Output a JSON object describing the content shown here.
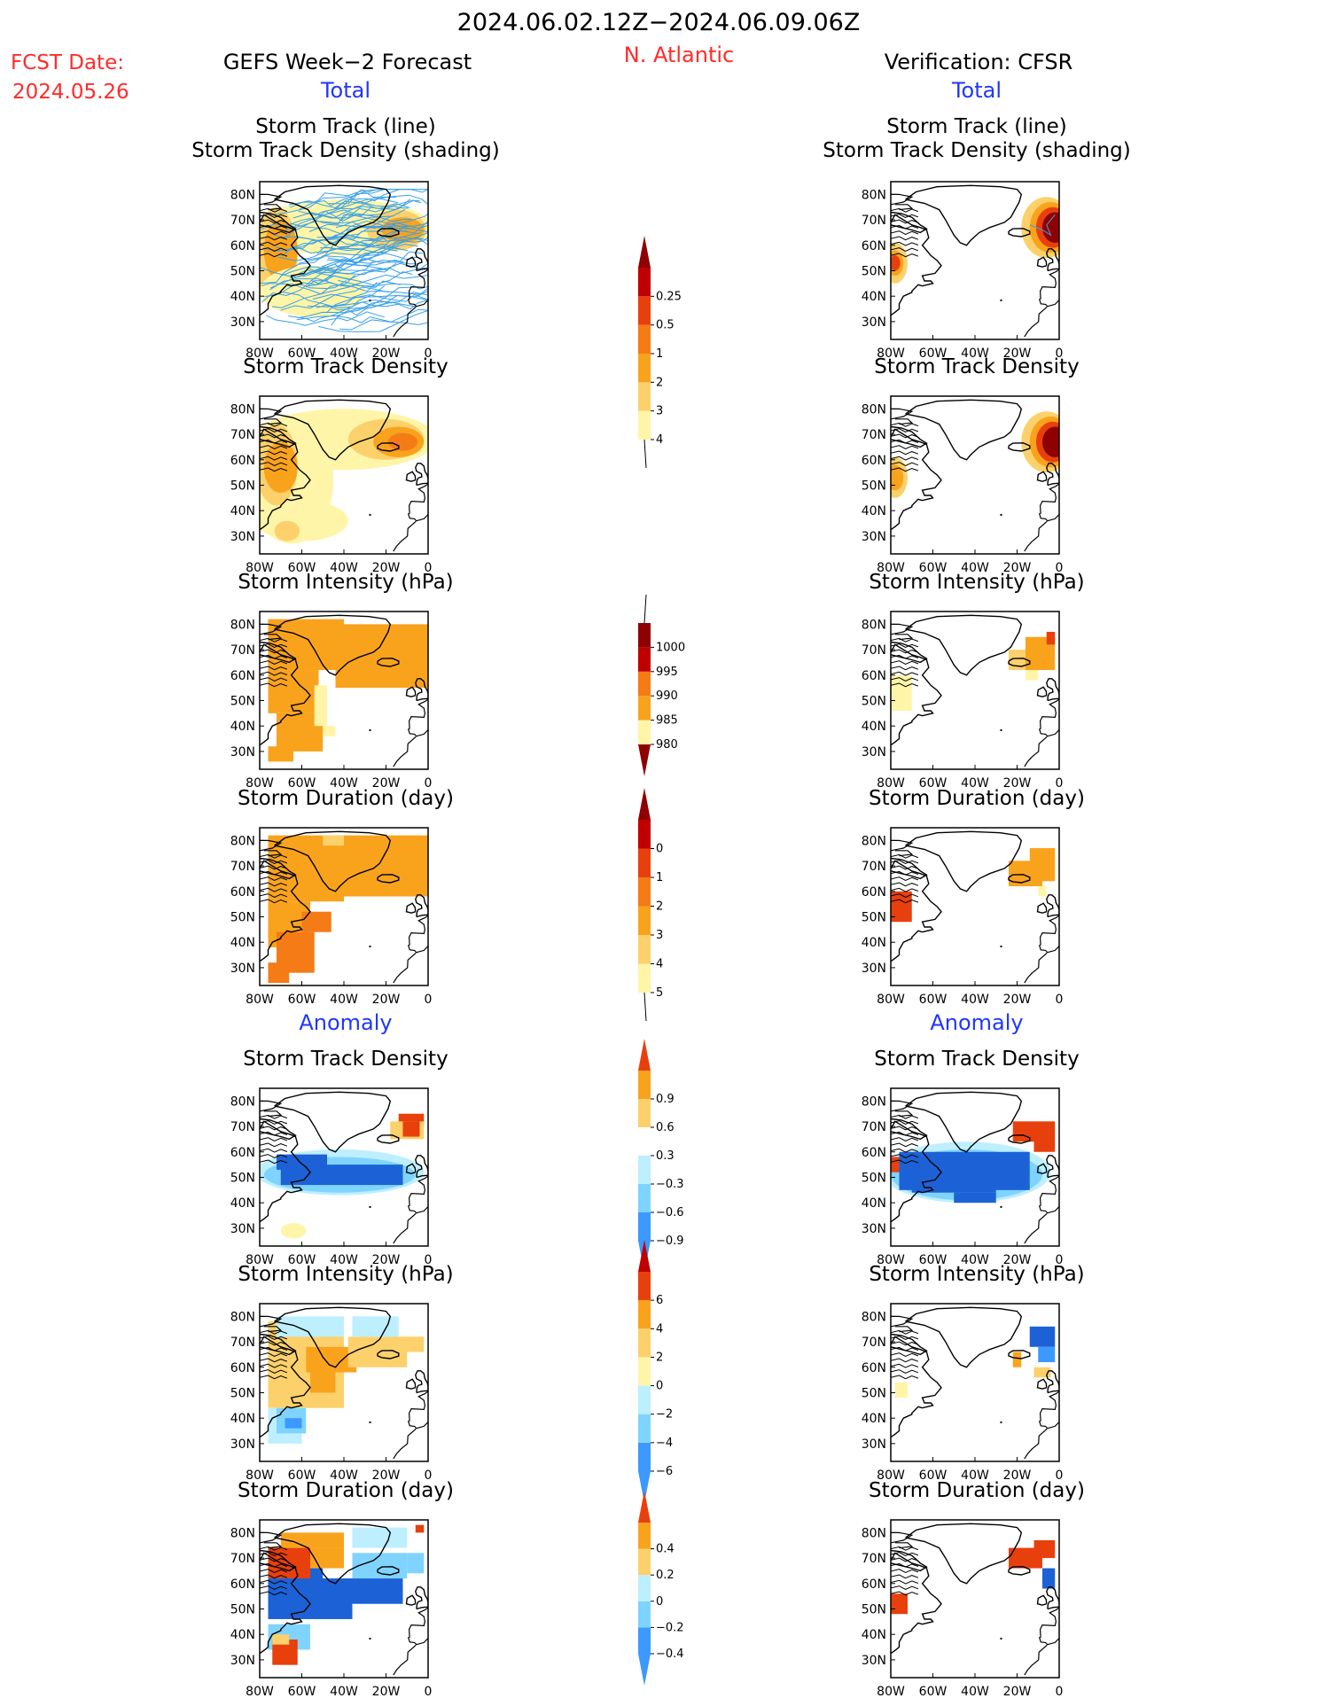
{
  "header": {
    "date_range": "2024.06.02.12Z−2024.06.09.06Z",
    "fcst_label": "FCST Date:",
    "fcst_date": "2024.05.26",
    "left_title": "GEFS Week−2 Forecast",
    "region": "N. Atlantic",
    "right_title": "Verification: CFSR",
    "total_left": "Total",
    "total_right": "Total",
    "anomaly_left": "Anomaly",
    "anomaly_right": "Anomaly"
  },
  "panel_titles": {
    "track_line": "Storm Track (line)",
    "track_shading": "Storm Track Density (shading)",
    "density": "Storm Track Density",
    "intensity": "Storm Intensity (hPa)",
    "duration": "Storm Duration (day)"
  },
  "axes": {
    "x_ticks": [
      "80W",
      "60W",
      "40W",
      "20W",
      "0"
    ],
    "y_ticks": [
      "80N",
      "70N",
      "60N",
      "50N",
      "40N",
      "30N"
    ]
  },
  "colors": {
    "yellow1": "#fff5a8",
    "yellow2": "#fcd16b",
    "orange1": "#f9a31d",
    "orange2": "#f57b16",
    "red1": "#e8400d",
    "red2": "#c00000",
    "dred": "#8f0000",
    "lblue1": "#bdefff",
    "lblue2": "#7fd4ff",
    "blue1": "#3b99ff",
    "blue2": "#1c62d6",
    "track_line": "#3aa0e8"
  },
  "chart_data": [
    {
      "type": "heatmap",
      "id": "track_density_total_scale",
      "colorbar_labels": [
        "0.25",
        "0.5",
        "1",
        "2",
        "3",
        "4"
      ]
    },
    {
      "type": "heatmap",
      "id": "intensity_total_scale",
      "colorbar_labels": [
        "1000",
        "995",
        "990",
        "985",
        "980"
      ]
    },
    {
      "type": "heatmap",
      "id": "duration_total_scale",
      "colorbar_labels": [
        "0",
        "1",
        "2",
        "3",
        "4",
        "5"
      ]
    },
    {
      "type": "heatmap",
      "id": "density_anomaly_scale",
      "colorbar_labels": [
        "0.9",
        "0.6",
        "0.3",
        "−0.3",
        "−0.6",
        "−0.9"
      ]
    },
    {
      "type": "heatmap",
      "id": "intensity_anomaly_scale",
      "colorbar_labels": [
        "6",
        "4",
        "2",
        "0",
        "−2",
        "−4",
        "−6"
      ]
    },
    {
      "type": "heatmap",
      "id": "duration_anomaly_scale",
      "colorbar_labels": [
        "0.4",
        "0.2",
        "0",
        "−0.2",
        "−0.4"
      ]
    }
  ]
}
